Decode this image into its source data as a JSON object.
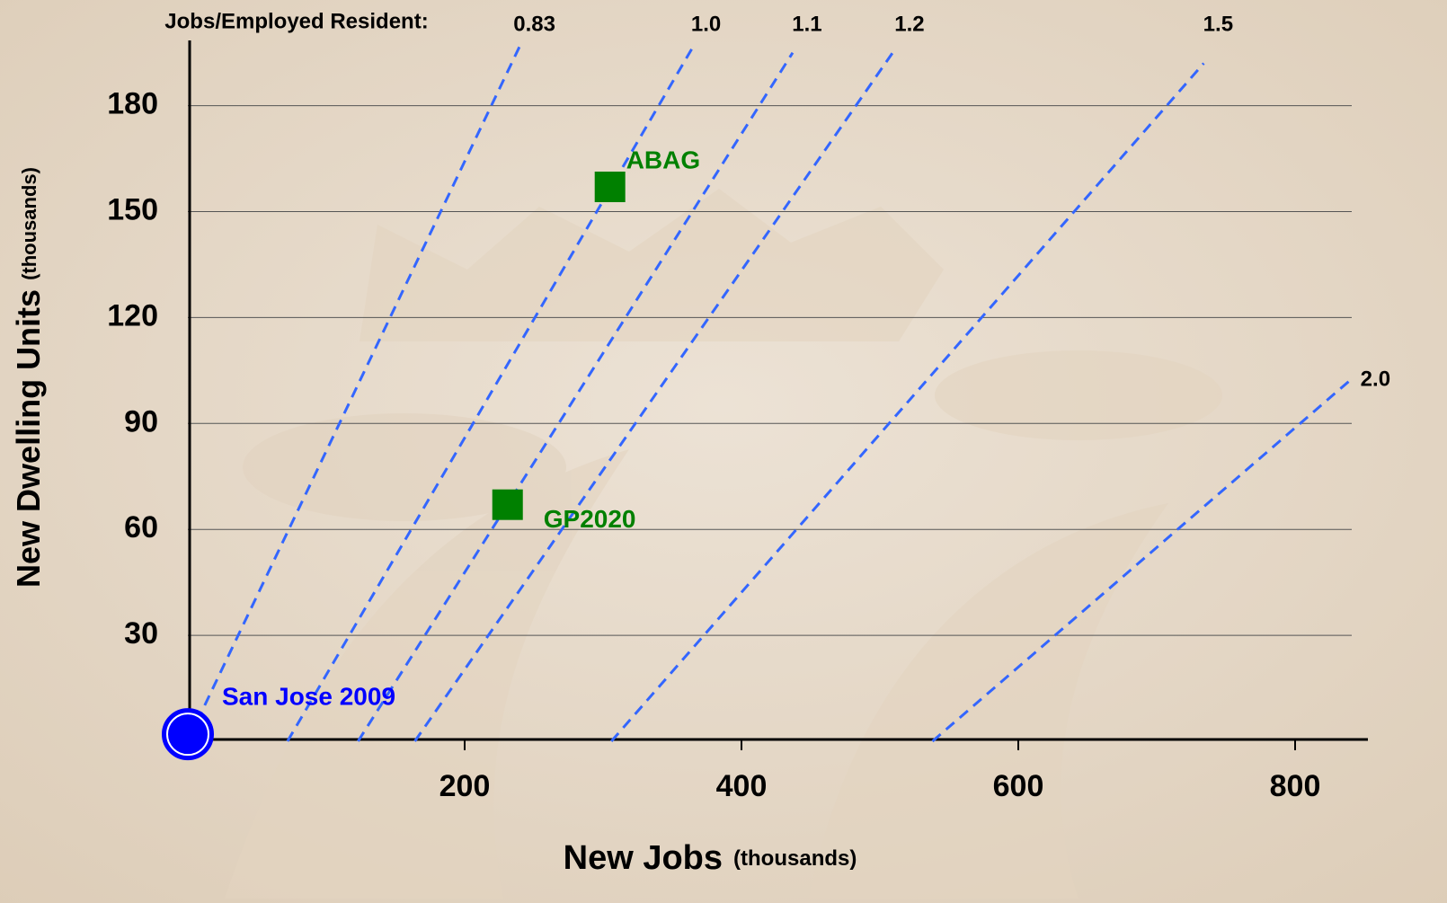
{
  "chart_data": {
    "type": "line",
    "x_label": "New Jobs",
    "x_label_unit": "(thousands)",
    "y_label": "New Dwelling Units",
    "y_label_unit": "(thousands)",
    "ratio_label": "Jobs/Employed Resident:",
    "xlim": [
      0,
      850
    ],
    "ylim": [
      0,
      200
    ],
    "xticks": [
      200,
      400,
      600,
      800
    ],
    "yticks": [
      30,
      60,
      90,
      120,
      150,
      180
    ],
    "grid": true,
    "line_style": "dashed",
    "series": [
      {
        "name": "0.83",
        "color": "#3366ff",
        "x": [
          1,
          240
        ],
        "values": [
          1,
          197
        ]
      },
      {
        "name": "1.0",
        "color": "#3366ff",
        "x": [
          72,
          364
        ],
        "values": [
          0,
          196
        ]
      },
      {
        "name": "1.1",
        "color": "#3366ff",
        "x": [
          123,
          437
        ],
        "values": [
          0,
          195
        ]
      },
      {
        "name": "1.2",
        "color": "#3366ff",
        "x": [
          164,
          511
        ],
        "values": [
          0,
          196
        ]
      },
      {
        "name": "1.5",
        "color": "#3366ff",
        "x": [
          306,
          734
        ],
        "values": [
          0,
          192
        ]
      },
      {
        "name": "2.0",
        "color": "#3366ff",
        "x": [
          538,
          842
        ],
        "values": [
          0,
          103
        ]
      }
    ],
    "points": [
      {
        "name": "ABAG",
        "x": 305,
        "y": 157,
        "color": "#008000",
        "marker": "square"
      },
      {
        "name": "GP2020",
        "x": 231,
        "y": 67,
        "color": "#008000",
        "marker": "square"
      },
      {
        "name": "San Jose 2009",
        "x": 0,
        "y": 2,
        "color": "#0000ff",
        "marker": "circle"
      }
    ]
  }
}
